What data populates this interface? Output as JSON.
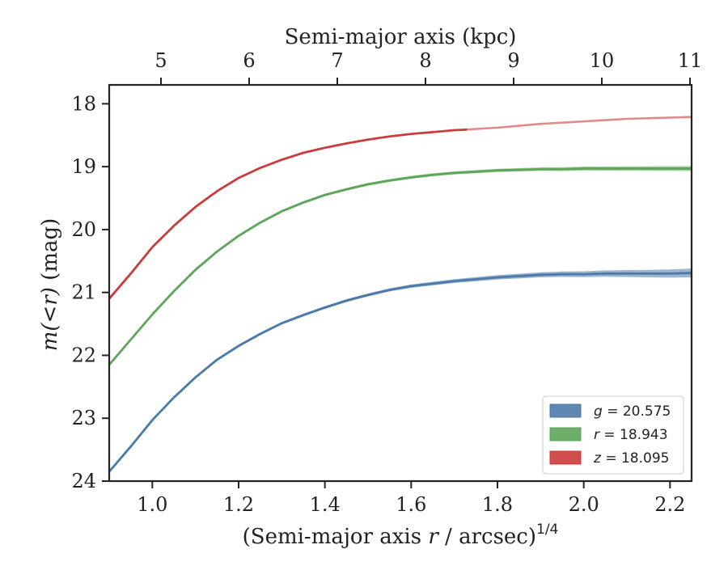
{
  "chart_data": {
    "type": "line",
    "title": "",
    "xlabel": "(Semi-major axis r / arcsec)1/4",
    "xlabel_parts": [
      "(Semi-major axis ",
      "r",
      " / arcsec)",
      "1/4"
    ],
    "ylabel": "m(<r) (mag)",
    "ylabel_parts": [
      "m",
      "(",
      "<",
      "r",
      ")",
      " (mag)"
    ],
    "top_xlabel": "Semi-major axis (kpc)",
    "xlim": [
      0.9,
      2.25
    ],
    "ylim": [
      24,
      17.7
    ],
    "y_inverted": true,
    "grid": false,
    "legend_position": "lower-right",
    "x_ticks": [
      1.0,
      1.2,
      1.4,
      1.6,
      1.8,
      2.0,
      2.2
    ],
    "x_tick_labels": [
      "1.0",
      "1.2",
      "1.4",
      "1.6",
      "1.8",
      "2.0",
      "2.2"
    ],
    "y_ticks": [
      18,
      19,
      20,
      21,
      22,
      23,
      24
    ],
    "y_tick_labels": [
      "18",
      "19",
      "20",
      "21",
      "22",
      "23",
      "24"
    ],
    "top_ticks_kpc": [
      5,
      6,
      7,
      8,
      9,
      10,
      11
    ],
    "top_tick_labels": [
      "5",
      "6",
      "7",
      "8",
      "9",
      "10",
      "11"
    ],
    "series": [
      {
        "name": "g = 20.575",
        "legend_var": "g",
        "legend_value": "= 20.575",
        "color": "#4c7aa9",
        "x": [
          0.9,
          0.95,
          1.0,
          1.05,
          1.1,
          1.15,
          1.2,
          1.25,
          1.3,
          1.35,
          1.4,
          1.45,
          1.5,
          1.55,
          1.6,
          1.65,
          1.7,
          1.75,
          1.8,
          1.85,
          1.9,
          1.95,
          2.0,
          2.05,
          2.1,
          2.15,
          2.2,
          2.25
        ],
        "values": [
          23.85,
          23.45,
          23.03,
          22.67,
          22.35,
          22.07,
          21.85,
          21.66,
          21.49,
          21.36,
          21.24,
          21.13,
          21.04,
          20.96,
          20.9,
          20.86,
          20.82,
          20.79,
          20.76,
          20.74,
          20.72,
          20.71,
          20.71,
          20.7,
          20.7,
          20.7,
          20.7,
          20.69
        ],
        "band_halfwidth_end": 0.05
      },
      {
        "name": "r = 18.943",
        "legend_var": "r",
        "legend_value": "= 18.943",
        "color": "#5da65a",
        "x": [
          0.9,
          0.95,
          1.0,
          1.05,
          1.1,
          1.15,
          1.2,
          1.25,
          1.3,
          1.35,
          1.4,
          1.45,
          1.5,
          1.55,
          1.6,
          1.65,
          1.7,
          1.75,
          1.8,
          1.85,
          1.9,
          1.95,
          2.0,
          2.05,
          2.1,
          2.15,
          2.2,
          2.25
        ],
        "values": [
          22.15,
          21.75,
          21.35,
          20.98,
          20.64,
          20.35,
          20.1,
          19.89,
          19.71,
          19.57,
          19.45,
          19.36,
          19.28,
          19.22,
          19.17,
          19.13,
          19.1,
          19.08,
          19.06,
          19.05,
          19.04,
          19.04,
          19.03,
          19.03,
          19.03,
          19.03,
          19.03,
          19.03
        ],
        "band_halfwidth_end": 0.02
      },
      {
        "name": "z = 18.095",
        "legend_var": "z",
        "legend_value": "= 18.095",
        "color": "#cc3b3b",
        "faded_color": "#e08a8a",
        "solid_until_x": 1.73,
        "x": [
          0.9,
          0.95,
          1.0,
          1.05,
          1.1,
          1.15,
          1.2,
          1.25,
          1.3,
          1.35,
          1.4,
          1.45,
          1.5,
          1.55,
          1.6,
          1.65,
          1.7,
          1.73,
          1.8,
          1.85,
          1.9,
          1.95,
          2.0,
          2.05,
          2.1,
          2.15,
          2.2,
          2.25
        ],
        "values": [
          21.1,
          20.7,
          20.28,
          19.94,
          19.64,
          19.39,
          19.18,
          19.02,
          18.89,
          18.78,
          18.7,
          18.63,
          18.57,
          18.52,
          18.48,
          18.45,
          18.42,
          18.41,
          18.38,
          18.35,
          18.32,
          18.3,
          18.28,
          18.26,
          18.24,
          18.23,
          18.22,
          18.21
        ],
        "band_halfwidth_end": 0.0
      }
    ]
  }
}
